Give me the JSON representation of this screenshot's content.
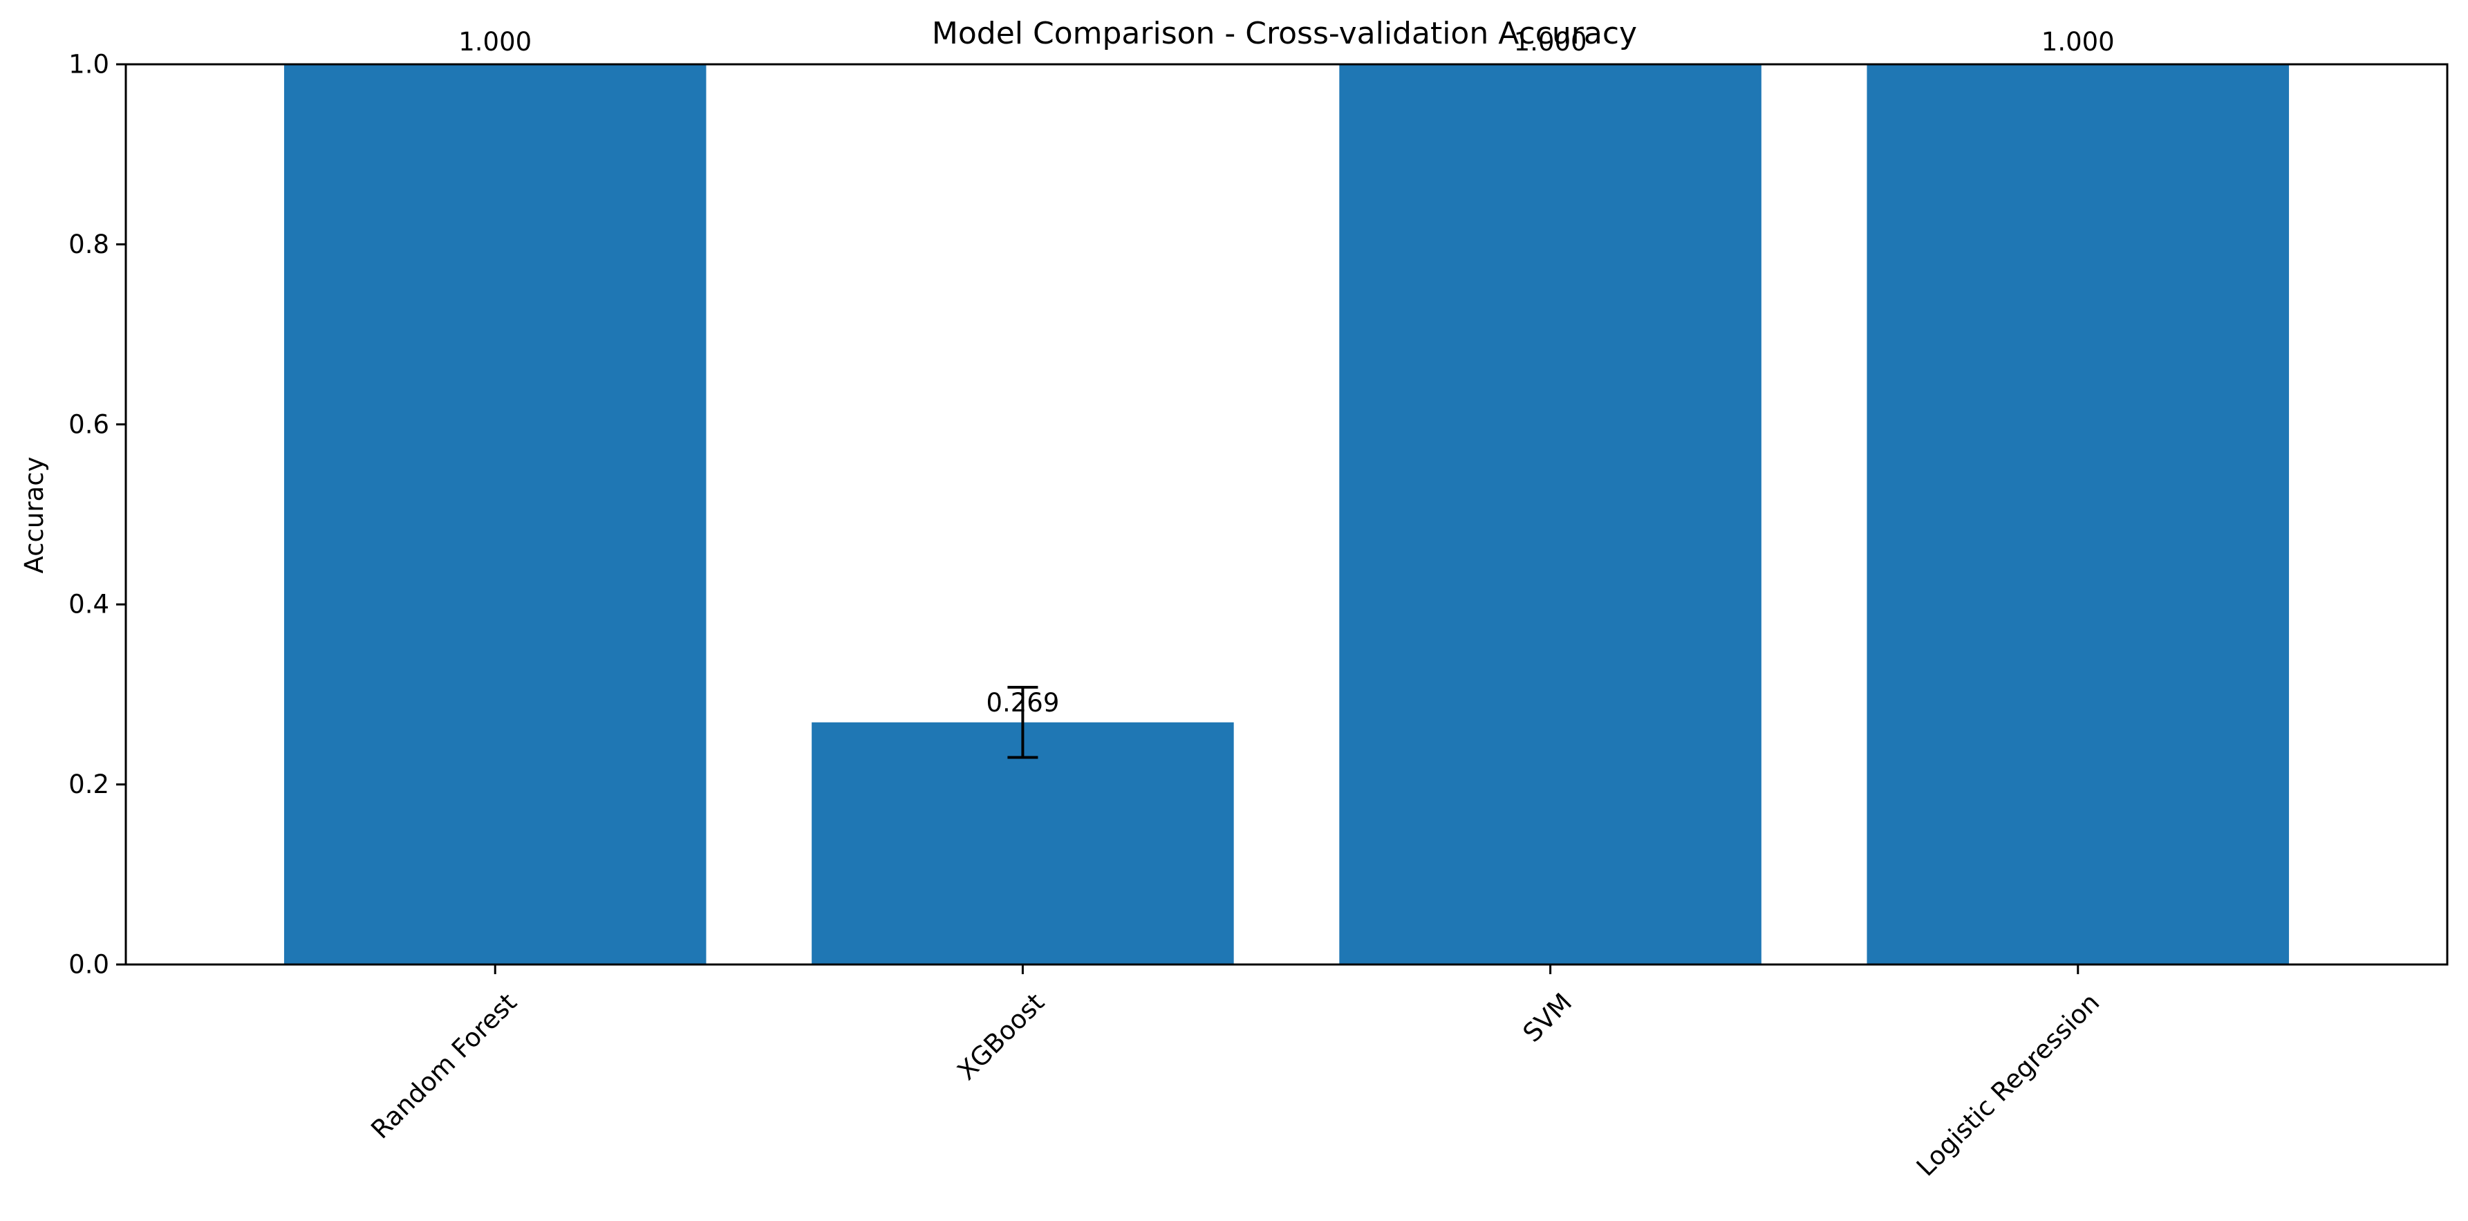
{
  "chart_data": {
    "type": "bar",
    "title": "Model Comparison - Cross-validation Accuracy",
    "xlabel": "",
    "ylabel": "Accuracy",
    "categories": [
      "Random Forest",
      "XGBoost",
      "SVM",
      "Logistic Regression"
    ],
    "values": [
      1.0,
      0.269,
      1.0,
      1.0
    ],
    "value_labels": [
      "1.000",
      "0.269",
      "1.000",
      "1.000"
    ],
    "error": [
      0,
      0.039,
      0,
      0
    ],
    "ylim": [
      0,
      1.0
    ],
    "yticks": [
      0.0,
      0.2,
      0.4,
      0.6,
      0.8,
      1.0
    ],
    "ytick_labels": [
      "0.0",
      "0.2",
      "0.4",
      "0.6",
      "0.8",
      "1.0"
    ],
    "bar_color": "#1f77b4",
    "error_color": "#000000",
    "grid": false,
    "legend": "none"
  }
}
